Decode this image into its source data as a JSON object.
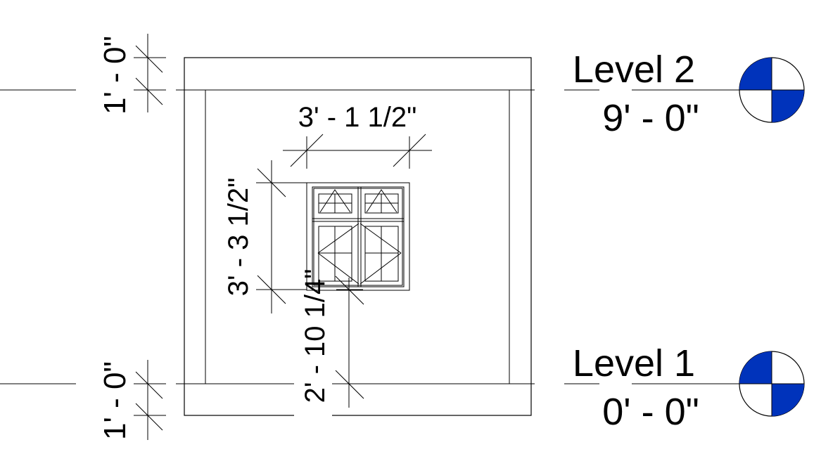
{
  "levels": [
    {
      "name": "Level 2",
      "elevation": "9' - 0\""
    },
    {
      "name": "Level 1",
      "elevation": "0' - 0\""
    }
  ],
  "dimensions": {
    "top_offset": "1' - 0\"",
    "bottom_offset": "1' - 0\"",
    "window_width": "3' - 1 1/2\"",
    "window_height": "3' - 3 1/2\"",
    "sill_height": "2' - 10 1/4\""
  },
  "colors": {
    "level_head_fill": "#0033bb",
    "line": "#000000"
  },
  "icons": {
    "level_head": "level-head-icon"
  }
}
